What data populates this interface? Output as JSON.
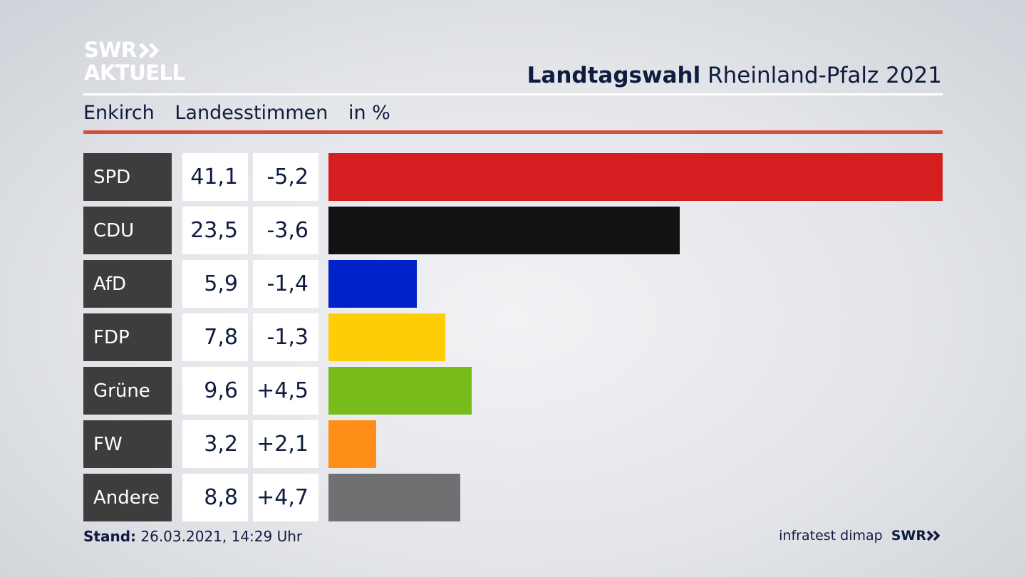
{
  "logo": {
    "line1": "SWR",
    "line2": "AKTUELL"
  },
  "header": {
    "title_bold": "Landtagswahl",
    "title_rest": "Rheinland-Pfalz 2021"
  },
  "subheader": {
    "place": "Enkirch",
    "type": "Landesstimmen",
    "unit": "in %"
  },
  "footer": {
    "stand_label": "Stand:",
    "stand_value": "26.03.2021, 14:29 Uhr",
    "source": "infratest dimap",
    "brand": "SWR"
  },
  "chart_data": {
    "type": "bar",
    "categories": [
      "SPD",
      "CDU",
      "AfD",
      "FDP",
      "Grüne",
      "FW",
      "Andere"
    ],
    "values": [
      41.1,
      23.5,
      5.9,
      7.8,
      9.6,
      3.2,
      8.8
    ],
    "values_label": [
      "41,1",
      "23,5",
      "5,9",
      "7,8",
      "9,6",
      "3,2",
      "8,8"
    ],
    "diff": [
      -5.2,
      -3.6,
      -1.4,
      -1.3,
      4.5,
      2.1,
      4.7
    ],
    "diff_label": [
      "-5,2",
      "-3,6",
      "-1,4",
      "-1,3",
      "+4,5",
      "+2,1",
      "+4,7"
    ],
    "colors": [
      "#d61e20",
      "#121212",
      "#0022c9",
      "#ffcd08",
      "#78bc1b",
      "#ff8e18",
      "#6f7072"
    ],
    "xlim": [
      0,
      41.1
    ],
    "title": "Landtagswahl Rheinland-Pfalz 2021",
    "legend": "none",
    "grid": false
  }
}
